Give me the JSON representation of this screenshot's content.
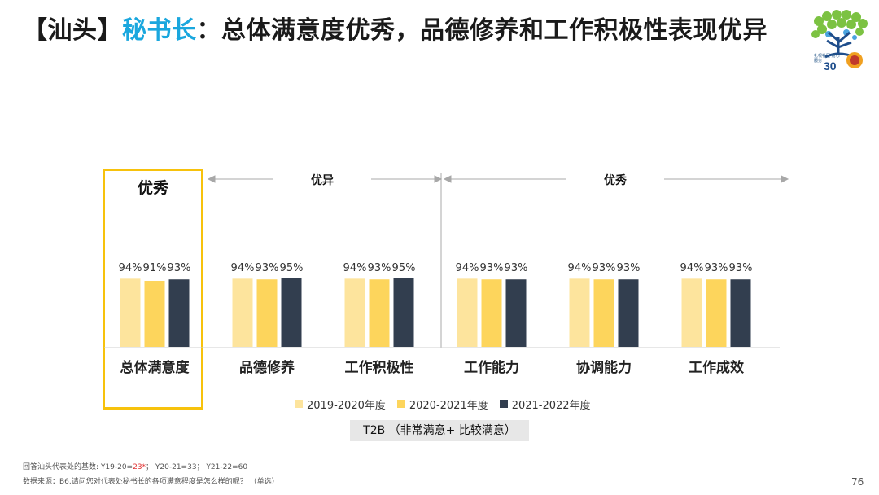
{
  "header": {
    "bracket_open": "【",
    "region": "汕头",
    "bracket_close": "】",
    "role": "秘书长",
    "colon": "：",
    "headline": "总体满意度优秀，品德修养和工作积极性表现优异"
  },
  "logo": {
    "icon": "tree-logo-icon",
    "text": "扎根社区 用心服务"
  },
  "ratings": {
    "highlight": "优秀",
    "group1": "优异",
    "group2": "优秀"
  },
  "chart_data": {
    "type": "bar",
    "categories": [
      "总体满意度",
      "品德修养",
      "工作积极性",
      "工作能力",
      "协调能力",
      "工作成效"
    ],
    "series": [
      {
        "name": "2019-2020年度",
        "values": [
          94,
          94,
          94,
          94,
          94,
          94
        ],
        "labels": [
          "94%",
          "94%",
          "94%",
          "94%",
          "94%",
          "94%"
        ]
      },
      {
        "name": "2020-2021年度",
        "values": [
          91,
          93,
          93,
          93,
          93,
          93
        ],
        "labels": [
          "91%",
          "93%",
          "93%",
          "93%",
          "93%",
          "93%"
        ]
      },
      {
        "name": "2021-2022年度",
        "values": [
          93,
          95,
          95,
          93,
          93,
          93
        ],
        "labels": [
          "93%",
          "95%",
          "95%",
          "93%",
          "93%",
          "93%"
        ]
      }
    ],
    "ylim": [
      0,
      100
    ],
    "colors": [
      "#fde49d",
      "#fdd55c",
      "#323e4f"
    ],
    "legend_position": "bottom",
    "grid": false
  },
  "t2b_label": "T2B （非常满意+ 比较满意）",
  "footnotes": {
    "base_prefix": "回答汕头代表处的基数:  Y19-20=",
    "base_y19": "23*",
    "base_suffix": "；  Y20-21=33；  Y21-22=60",
    "source": "数据来源：B6.请问您对代表处秘书长的各项满意程度是怎么样的呢？ （单选）"
  },
  "page_number": "76"
}
